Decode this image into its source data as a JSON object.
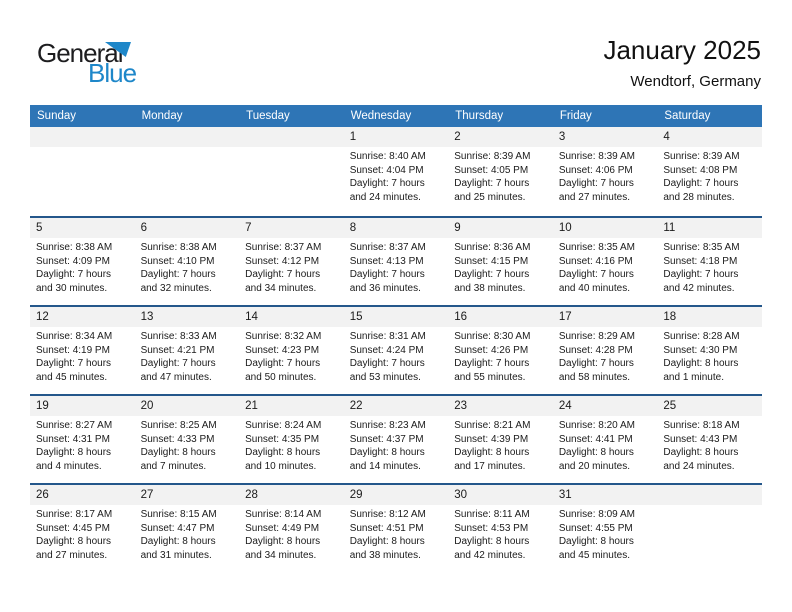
{
  "logo": {
    "general": "General",
    "blue": "Blue"
  },
  "header": {
    "title": "January 2025",
    "subtitle": "Wendtorf, Germany"
  },
  "colors": {
    "header_bg": "#2E75B6",
    "line_blue": "#24578B",
    "strip_bg": "#F2F2F2",
    "brand_blue": "#1E87C9"
  },
  "calendar": {
    "weekdays": [
      "Sunday",
      "Monday",
      "Tuesday",
      "Wednesday",
      "Thursday",
      "Friday",
      "Saturday"
    ],
    "weeks": [
      [
        null,
        null,
        null,
        {
          "day": "1",
          "sunrise": "Sunrise: 8:40 AM",
          "sunset": "Sunset: 4:04 PM",
          "daylight1": "Daylight: 7 hours",
          "daylight2": "and 24 minutes."
        },
        {
          "day": "2",
          "sunrise": "Sunrise: 8:39 AM",
          "sunset": "Sunset: 4:05 PM",
          "daylight1": "Daylight: 7 hours",
          "daylight2": "and 25 minutes."
        },
        {
          "day": "3",
          "sunrise": "Sunrise: 8:39 AM",
          "sunset": "Sunset: 4:06 PM",
          "daylight1": "Daylight: 7 hours",
          "daylight2": "and 27 minutes."
        },
        {
          "day": "4",
          "sunrise": "Sunrise: 8:39 AM",
          "sunset": "Sunset: 4:08 PM",
          "daylight1": "Daylight: 7 hours",
          "daylight2": "and 28 minutes."
        }
      ],
      [
        {
          "day": "5",
          "sunrise": "Sunrise: 8:38 AM",
          "sunset": "Sunset: 4:09 PM",
          "daylight1": "Daylight: 7 hours",
          "daylight2": "and 30 minutes."
        },
        {
          "day": "6",
          "sunrise": "Sunrise: 8:38 AM",
          "sunset": "Sunset: 4:10 PM",
          "daylight1": "Daylight: 7 hours",
          "daylight2": "and 32 minutes."
        },
        {
          "day": "7",
          "sunrise": "Sunrise: 8:37 AM",
          "sunset": "Sunset: 4:12 PM",
          "daylight1": "Daylight: 7 hours",
          "daylight2": "and 34 minutes."
        },
        {
          "day": "8",
          "sunrise": "Sunrise: 8:37 AM",
          "sunset": "Sunset: 4:13 PM",
          "daylight1": "Daylight: 7 hours",
          "daylight2": "and 36 minutes."
        },
        {
          "day": "9",
          "sunrise": "Sunrise: 8:36 AM",
          "sunset": "Sunset: 4:15 PM",
          "daylight1": "Daylight: 7 hours",
          "daylight2": "and 38 minutes."
        },
        {
          "day": "10",
          "sunrise": "Sunrise: 8:35 AM",
          "sunset": "Sunset: 4:16 PM",
          "daylight1": "Daylight: 7 hours",
          "daylight2": "and 40 minutes."
        },
        {
          "day": "11",
          "sunrise": "Sunrise: 8:35 AM",
          "sunset": "Sunset: 4:18 PM",
          "daylight1": "Daylight: 7 hours",
          "daylight2": "and 42 minutes."
        }
      ],
      [
        {
          "day": "12",
          "sunrise": "Sunrise: 8:34 AM",
          "sunset": "Sunset: 4:19 PM",
          "daylight1": "Daylight: 7 hours",
          "daylight2": "and 45 minutes."
        },
        {
          "day": "13",
          "sunrise": "Sunrise: 8:33 AM",
          "sunset": "Sunset: 4:21 PM",
          "daylight1": "Daylight: 7 hours",
          "daylight2": "and 47 minutes."
        },
        {
          "day": "14",
          "sunrise": "Sunrise: 8:32 AM",
          "sunset": "Sunset: 4:23 PM",
          "daylight1": "Daylight: 7 hours",
          "daylight2": "and 50 minutes."
        },
        {
          "day": "15",
          "sunrise": "Sunrise: 8:31 AM",
          "sunset": "Sunset: 4:24 PM",
          "daylight1": "Daylight: 7 hours",
          "daylight2": "and 53 minutes."
        },
        {
          "day": "16",
          "sunrise": "Sunrise: 8:30 AM",
          "sunset": "Sunset: 4:26 PM",
          "daylight1": "Daylight: 7 hours",
          "daylight2": "and 55 minutes."
        },
        {
          "day": "17",
          "sunrise": "Sunrise: 8:29 AM",
          "sunset": "Sunset: 4:28 PM",
          "daylight1": "Daylight: 7 hours",
          "daylight2": "and 58 minutes."
        },
        {
          "day": "18",
          "sunrise": "Sunrise: 8:28 AM",
          "sunset": "Sunset: 4:30 PM",
          "daylight1": "Daylight: 8 hours",
          "daylight2": "and 1 minute."
        }
      ],
      [
        {
          "day": "19",
          "sunrise": "Sunrise: 8:27 AM",
          "sunset": "Sunset: 4:31 PM",
          "daylight1": "Daylight: 8 hours",
          "daylight2": "and 4 minutes."
        },
        {
          "day": "20",
          "sunrise": "Sunrise: 8:25 AM",
          "sunset": "Sunset: 4:33 PM",
          "daylight1": "Daylight: 8 hours",
          "daylight2": "and 7 minutes."
        },
        {
          "day": "21",
          "sunrise": "Sunrise: 8:24 AM",
          "sunset": "Sunset: 4:35 PM",
          "daylight1": "Daylight: 8 hours",
          "daylight2": "and 10 minutes."
        },
        {
          "day": "22",
          "sunrise": "Sunrise: 8:23 AM",
          "sunset": "Sunset: 4:37 PM",
          "daylight1": "Daylight: 8 hours",
          "daylight2": "and 14 minutes."
        },
        {
          "day": "23",
          "sunrise": "Sunrise: 8:21 AM",
          "sunset": "Sunset: 4:39 PM",
          "daylight1": "Daylight: 8 hours",
          "daylight2": "and 17 minutes."
        },
        {
          "day": "24",
          "sunrise": "Sunrise: 8:20 AM",
          "sunset": "Sunset: 4:41 PM",
          "daylight1": "Daylight: 8 hours",
          "daylight2": "and 20 minutes."
        },
        {
          "day": "25",
          "sunrise": "Sunrise: 8:18 AM",
          "sunset": "Sunset: 4:43 PM",
          "daylight1": "Daylight: 8 hours",
          "daylight2": "and 24 minutes."
        }
      ],
      [
        {
          "day": "26",
          "sunrise": "Sunrise: 8:17 AM",
          "sunset": "Sunset: 4:45 PM",
          "daylight1": "Daylight: 8 hours",
          "daylight2": "and 27 minutes."
        },
        {
          "day": "27",
          "sunrise": "Sunrise: 8:15 AM",
          "sunset": "Sunset: 4:47 PM",
          "daylight1": "Daylight: 8 hours",
          "daylight2": "and 31 minutes."
        },
        {
          "day": "28",
          "sunrise": "Sunrise: 8:14 AM",
          "sunset": "Sunset: 4:49 PM",
          "daylight1": "Daylight: 8 hours",
          "daylight2": "and 34 minutes."
        },
        {
          "day": "29",
          "sunrise": "Sunrise: 8:12 AM",
          "sunset": "Sunset: 4:51 PM",
          "daylight1": "Daylight: 8 hours",
          "daylight2": "and 38 minutes."
        },
        {
          "day": "30",
          "sunrise": "Sunrise: 8:11 AM",
          "sunset": "Sunset: 4:53 PM",
          "daylight1": "Daylight: 8 hours",
          "daylight2": "and 42 minutes."
        },
        {
          "day": "31",
          "sunrise": "Sunrise: 8:09 AM",
          "sunset": "Sunset: 4:55 PM",
          "daylight1": "Daylight: 8 hours",
          "daylight2": "and 45 minutes."
        },
        null
      ]
    ]
  }
}
